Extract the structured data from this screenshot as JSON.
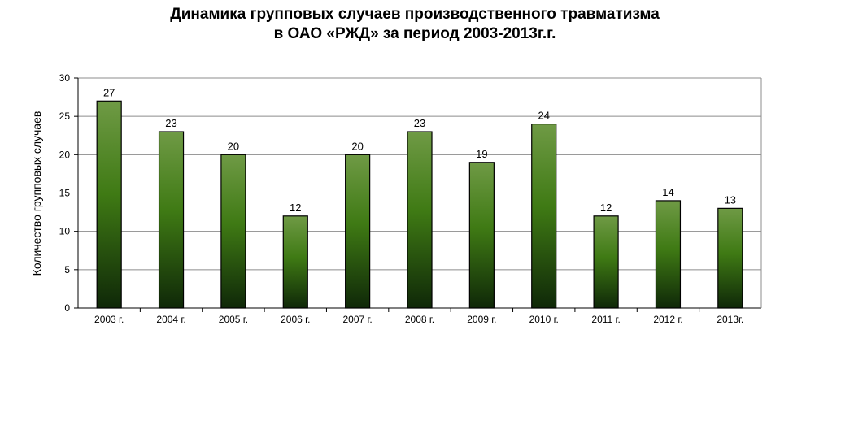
{
  "chart_data": {
    "type": "bar",
    "title_lines": [
      "Динамика групповых случаев производственного травматизма",
      "в ОАО «РЖД»  за период 2003-2013г.г."
    ],
    "xlabel": "",
    "ylabel": "Количество групповых случаев",
    "categories": [
      "2003 г.",
      "2004 г.",
      "2005 г.",
      "2006 г.",
      "2007 г.",
      "2008 г.",
      "2009 г.",
      "2010 г.",
      "2011 г.",
      "2012 г.",
      "2013г."
    ],
    "values": [
      27,
      23,
      20,
      12,
      20,
      23,
      19,
      24,
      12,
      14,
      13
    ],
    "ylim": [
      0,
      30
    ],
    "yticks": [
      0,
      5,
      10,
      15,
      20,
      25,
      30
    ],
    "grid": true,
    "legend": "none",
    "colors": {
      "bar_top": "#6f9a45",
      "bar_mid": "#3f7a14",
      "bar_bottom": "#0f2808",
      "gridline": "#8c8c8c",
      "axis": "#000000"
    }
  }
}
